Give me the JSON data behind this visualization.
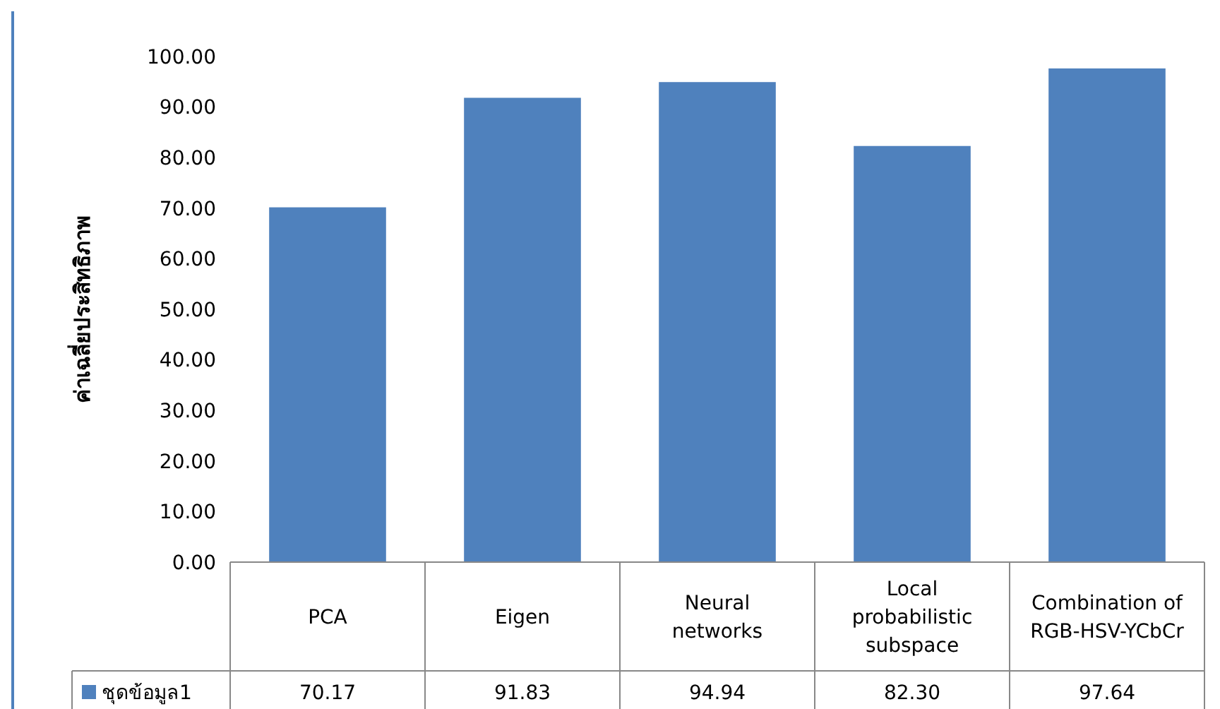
{
  "chart_data": {
    "type": "bar",
    "ylabel": "ค่าเฉลี่ยประสิทธิภาพ",
    "categories": [
      "PCA",
      "Eigen",
      "Neural networks",
      "Local probabilistic subspace",
      "Combination of RGB-HSV-YCbCr"
    ],
    "series": [
      {
        "name": "ชุดข้อมูล1",
        "color": "#4f81bd",
        "values": [
          70.17,
          91.83,
          94.94,
          82.3,
          97.64
        ]
      }
    ],
    "value_labels": [
      "70.17",
      "91.83",
      "94.94",
      "82.30",
      "97.64"
    ],
    "ylim": [
      0,
      100
    ],
    "yticks": [
      {
        "value": 0,
        "label": "0.00"
      },
      {
        "value": 10,
        "label": "10.00"
      },
      {
        "value": 20,
        "label": "20.00"
      },
      {
        "value": 30,
        "label": "30.00"
      },
      {
        "value": 40,
        "label": "40.00"
      },
      {
        "value": 50,
        "label": "50.00"
      },
      {
        "value": 60,
        "label": "60.00"
      },
      {
        "value": 70,
        "label": "70.00"
      },
      {
        "value": 80,
        "label": "80.00"
      },
      {
        "value": 90,
        "label": "90.00"
      },
      {
        "value": 100,
        "label": "100.00"
      }
    ],
    "grid": false,
    "legend": "bottom left"
  }
}
